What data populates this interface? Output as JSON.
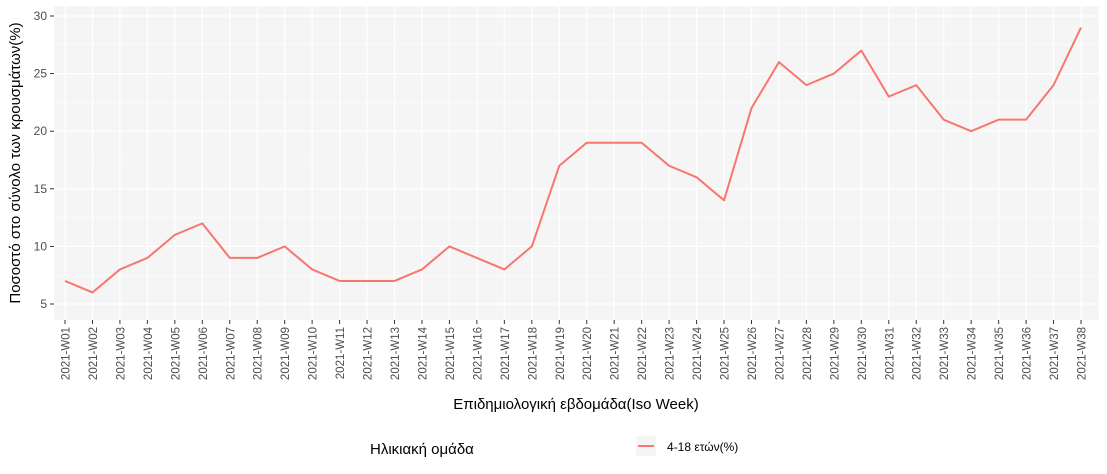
{
  "chart_data": {
    "type": "line",
    "xlabel": "Επιδημιολογική εβδομάδα(Iso Week)",
    "ylabel": "Ποσοστό στο σύνολο των κρουσμάτων(%)",
    "categories": [
      "2021-W01",
      "2021-W02",
      "2021-W03",
      "2021-W04",
      "2021-W05",
      "2021-W06",
      "2021-W07",
      "2021-W08",
      "2021-W09",
      "2021-W10",
      "2021-W11",
      "2021-W12",
      "2021-W13",
      "2021-W14",
      "2021-W15",
      "2021-W16",
      "2021-W17",
      "2021-W18",
      "2021-W19",
      "2021-W20",
      "2021-W21",
      "2021-W22",
      "2021-W23",
      "2021-W24",
      "2021-W25",
      "2021-W26",
      "2021-W27",
      "2021-W28",
      "2021-W29",
      "2021-W30",
      "2021-W31",
      "2021-W32",
      "2021-W33",
      "2021-W34",
      "2021-W35",
      "2021-W36",
      "2021-W37",
      "2021-W38"
    ],
    "series": [
      {
        "name": "4-18 ετών(%)",
        "color": "#f8766d",
        "values": [
          7,
          6,
          8,
          9,
          11,
          12,
          9,
          9,
          10,
          8,
          7,
          7,
          7,
          8,
          10,
          9,
          8,
          10,
          17,
          19,
          19,
          19,
          17,
          16,
          14,
          22,
          26,
          24,
          25,
          27,
          23,
          24,
          21,
          20,
          21,
          21,
          24,
          29
        ]
      }
    ],
    "ylim": [
      5,
      30
    ],
    "yticks": [
      5,
      10,
      15,
      20,
      25,
      30
    ],
    "grid": true,
    "legend": {
      "title": "Ηλικιακή ομάδα",
      "placement": "bottom"
    },
    "panel_color": "#f5f5f5",
    "grid_color": "#ffffff"
  }
}
